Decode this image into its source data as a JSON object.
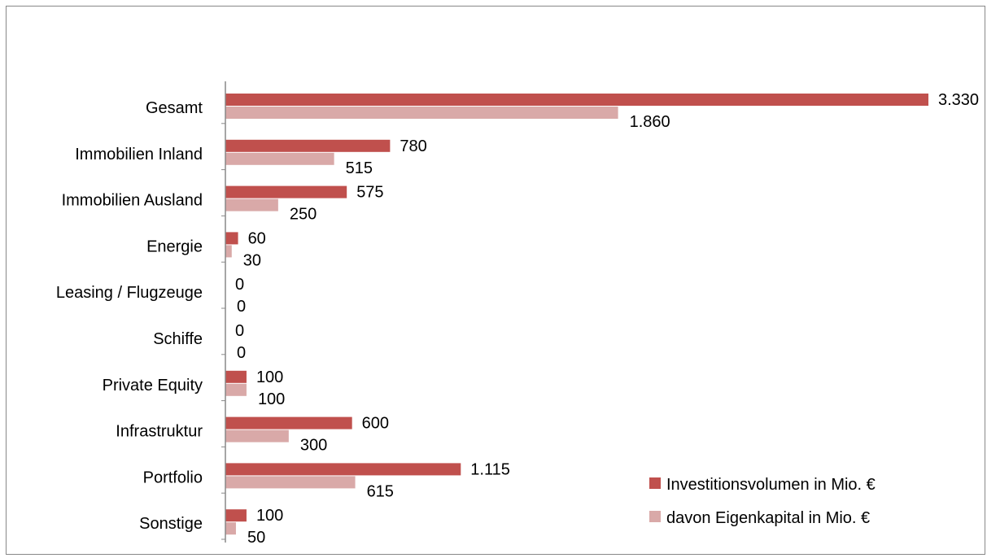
{
  "chart_data": {
    "type": "bar",
    "orientation": "horizontal",
    "categories": [
      "Gesamt",
      "Immobilien Inland",
      "Immobilien Ausland",
      "Energie",
      "Leasing / Flugzeuge",
      "Schiffe",
      "Private Equity",
      "Infrastruktur",
      "Portfolio",
      "Sonstige"
    ],
    "series": [
      {
        "name": "Investitionsvolumen in Mio. €",
        "color": "#c0504d",
        "values": [
          3330,
          780,
          575,
          60,
          0,
          0,
          100,
          600,
          1115,
          100
        ],
        "labels": [
          "3.330",
          "780",
          "575",
          "60",
          "0",
          "0",
          "100",
          "600",
          "1.115",
          "100"
        ]
      },
      {
        "name": "davon Eigenkapital in Mio. €",
        "color": "#d9a9a8",
        "values": [
          1860,
          515,
          250,
          30,
          0,
          0,
          100,
          300,
          615,
          50
        ],
        "labels": [
          "1.860",
          "515",
          "250",
          "30",
          "0",
          "0",
          "100",
          "300",
          "615",
          "50"
        ]
      }
    ],
    "xlim": [
      0,
      3330
    ],
    "grid": false,
    "legend_position": "bottom-right",
    "title": "",
    "xlabel": "",
    "ylabel": ""
  }
}
